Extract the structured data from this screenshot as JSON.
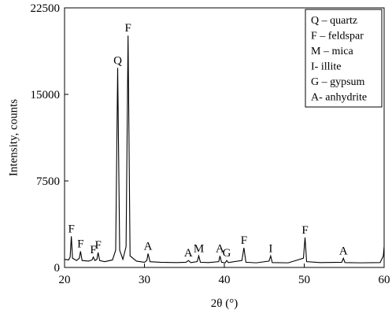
{
  "chart_data": {
    "type": "line",
    "xlabel": "2θ (°)",
    "ylabel": "Intensity, counts",
    "x": [
      20,
      20.5,
      20.7,
      20.85,
      21.0,
      21.5,
      21.85,
      22.0,
      22.2,
      23.0,
      23.45,
      23.6,
      23.8,
      24.05,
      24.2,
      24.4,
      25.0,
      26.0,
      26.4,
      26.65,
      26.9,
      27.3,
      27.7,
      27.95,
      28.2,
      29.0,
      30.0,
      30.3,
      30.45,
      30.7,
      32.0,
      34.0,
      35.2,
      35.5,
      35.8,
      36.6,
      36.8,
      37.0,
      38.0,
      39.3,
      39.45,
      39.65,
      40.1,
      40.3,
      40.5,
      42.2,
      42.45,
      42.7,
      44.0,
      45.6,
      45.8,
      46.0,
      48.0,
      49.9,
      50.1,
      50.3,
      52.0,
      54.7,
      54.9,
      55.1,
      57.0,
      59.5,
      59.9,
      60
    ],
    "values": [
      700,
      650,
      900,
      2700,
      800,
      600,
      800,
      1400,
      600,
      550,
      650,
      900,
      600,
      700,
      1300,
      600,
      500,
      650,
      1500,
      17300,
      1500,
      700,
      1800,
      20100,
      1000,
      550,
      450,
      600,
      1200,
      500,
      450,
      420,
      450,
      600,
      420,
      500,
      1000,
      450,
      420,
      500,
      1000,
      450,
      400,
      600,
      420,
      600,
      1700,
      450,
      400,
      550,
      1000,
      420,
      400,
      800,
      2600,
      500,
      420,
      450,
      800,
      420,
      400,
      420,
      1000,
      1800
    ],
    "color": "#000000",
    "xlim": [
      20,
      60
    ],
    "ylim": [
      0,
      22500
    ],
    "xticks": [
      20,
      30,
      40,
      50,
      60
    ],
    "yticks": [
      0,
      7500,
      15000,
      22500
    ],
    "annotations": [
      {
        "text": "F",
        "x": 20.85
      },
      {
        "text": "F",
        "x": 22.0
      },
      {
        "text": "F",
        "x": 23.6
      },
      {
        "text": "F",
        "x": 24.2
      },
      {
        "text": "Q",
        "x": 26.65
      },
      {
        "text": "F",
        "x": 27.95
      },
      {
        "text": "A",
        "x": 30.45
      },
      {
        "text": "A",
        "x": 35.5
      },
      {
        "text": "M",
        "x": 36.8
      },
      {
        "text": "A",
        "x": 39.45
      },
      {
        "text": "G",
        "x": 40.3
      },
      {
        "text": "F",
        "x": 42.45
      },
      {
        "text": "I",
        "x": 45.8
      },
      {
        "text": "F",
        "x": 50.1
      },
      {
        "text": "A",
        "x": 54.9
      }
    ],
    "legend": [
      "Q – quartz",
      "F – feldspar",
      "M – mica",
      "I- illite",
      "G – gypsum",
      "A- anhydrite"
    ]
  }
}
